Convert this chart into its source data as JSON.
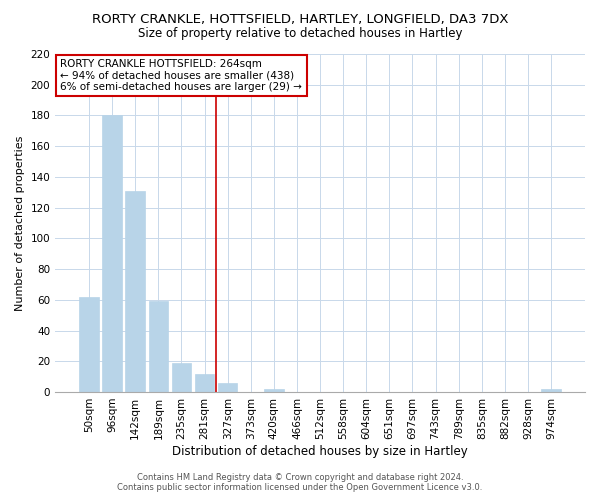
{
  "title": "RORTY CRANKLE, HOTTSFIELD, HARTLEY, LONGFIELD, DA3 7DX",
  "subtitle": "Size of property relative to detached houses in Hartley",
  "xlabel": "Distribution of detached houses by size in Hartley",
  "ylabel": "Number of detached properties",
  "bar_labels": [
    "50sqm",
    "96sqm",
    "142sqm",
    "189sqm",
    "235sqm",
    "281sqm",
    "327sqm",
    "373sqm",
    "420sqm",
    "466sqm",
    "512sqm",
    "558sqm",
    "604sqm",
    "651sqm",
    "697sqm",
    "743sqm",
    "789sqm",
    "835sqm",
    "882sqm",
    "928sqm",
    "974sqm"
  ],
  "bar_values": [
    62,
    180,
    131,
    59,
    19,
    12,
    6,
    0,
    2,
    0,
    0,
    0,
    0,
    0,
    0,
    0,
    0,
    0,
    0,
    0,
    2
  ],
  "bar_color": "#b8d4e8",
  "bar_edge_color": "#b8d4e8",
  "vline_x": 5.5,
  "vline_color": "#cc0000",
  "ylim": [
    0,
    220
  ],
  "yticks": [
    0,
    20,
    40,
    60,
    80,
    100,
    120,
    140,
    160,
    180,
    200,
    220
  ],
  "annotation_title": "RORTY CRANKLE HOTTSFIELD: 264sqm",
  "annotation_line1": "← 94% of detached houses are smaller (438)",
  "annotation_line2": "6% of semi-detached houses are larger (29) →",
  "annotation_box_color": "#ffffff",
  "annotation_border_color": "#cc0000",
  "footer_line1": "Contains HM Land Registry data © Crown copyright and database right 2024.",
  "footer_line2": "Contains public sector information licensed under the Open Government Licence v3.0.",
  "background_color": "#ffffff",
  "grid_color": "#c8d8ea",
  "title_fontsize": 9.5,
  "subtitle_fontsize": 8.5,
  "ylabel_fontsize": 8,
  "xlabel_fontsize": 8.5,
  "tick_fontsize": 7.5,
  "annot_fontsize": 7.5,
  "footer_fontsize": 6
}
